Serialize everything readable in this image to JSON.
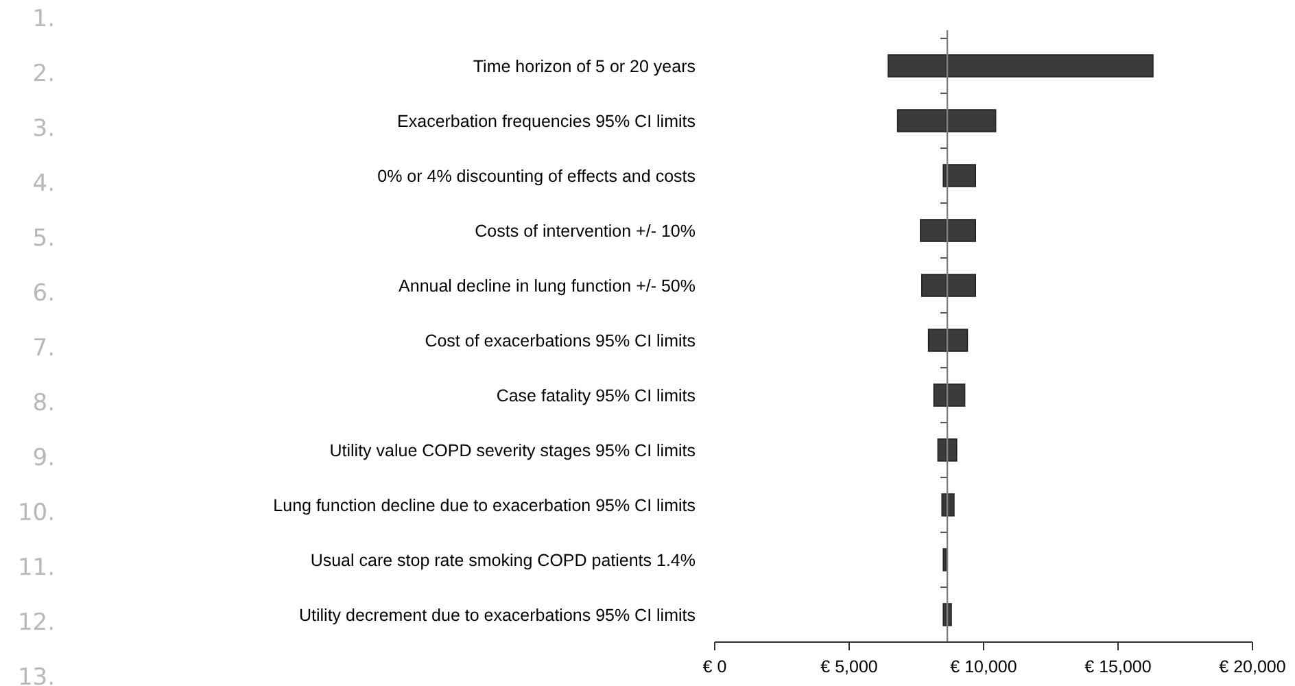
{
  "chart_data": {
    "type": "bar",
    "orientation": "horizontal",
    "categories": [
      "Time horizon of 5 or 20 years",
      "Exacerbation frequencies 95% CI limits",
      "0% or 4% discounting of effects and costs",
      "Costs of intervention +/- 10%",
      "Annual decline in lung function +/- 50%",
      "Cost of exacerbations 95% CI limits",
      "Case fatality 95% CI limits",
      "Utility value COPD severity stages 95% CI limits",
      "Lung function decline due to exacerbation 95% CI limits",
      "Usual care stop rate smoking COPD patients 1.4%",
      "Utility decrement due to exacerbations 95% CI limits"
    ],
    "base": [
      6450,
      6800,
      8500,
      7650,
      7700,
      7950,
      8150,
      8300,
      8450,
      8500,
      8500
    ],
    "values": [
      9850,
      3650,
      1200,
      2050,
      2000,
      1450,
      1150,
      700,
      450,
      100,
      300
    ],
    "color": "#3a3a3a",
    "xlim": [
      0,
      20000
    ],
    "xticks": [
      {
        "value": 0,
        "label": "€ 0"
      },
      {
        "value": 5000,
        "label": "€ 5,000"
      },
      {
        "value": 10000,
        "label": "€ 10,000"
      },
      {
        "value": 15000,
        "label": "€ 15,000"
      },
      {
        "value": 20000,
        "label": "€ 20,000"
      }
    ],
    "ref_lines": [
      {
        "axis": "x",
        "value": 8650,
        "color": "#808080"
      }
    ],
    "annotations": [
      "1.",
      "2.",
      "3.",
      "4.",
      "5.",
      "6.",
      "7.",
      "8.",
      "9.",
      "10.",
      "11.",
      "12.",
      "13."
    ]
  }
}
